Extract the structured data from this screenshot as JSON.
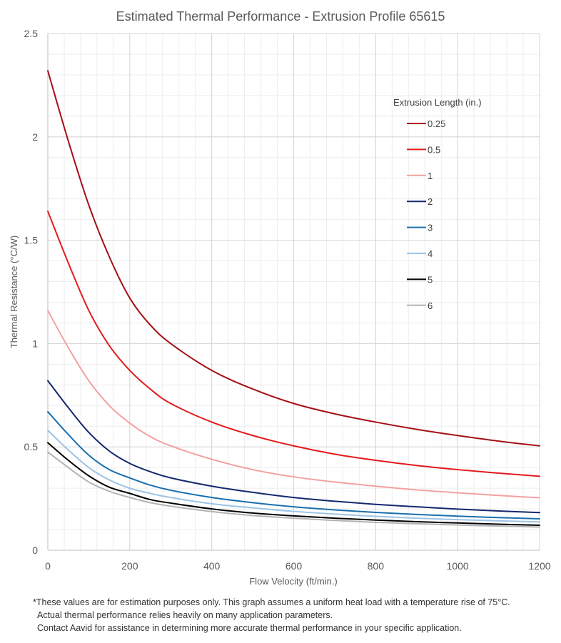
{
  "chart_data": {
    "type": "line",
    "title": "Estimated Thermal Performance - Extrusion Profile 65615",
    "xlabel": "Flow Velocity (ft/min.)",
    "ylabel": "Thermal Resistance (°C/W)",
    "xlim": [
      0,
      1200
    ],
    "ylim": [
      0,
      2.5
    ],
    "xticks": [
      0,
      200,
      400,
      600,
      800,
      1000,
      1200
    ],
    "yticks": [
      0,
      0.5,
      1,
      1.5,
      2,
      2.5
    ],
    "ytick_labels": [
      "0",
      "0.5",
      "1",
      "1.5",
      "2",
      "2.5"
    ],
    "xtick_labels": [
      "0",
      "200",
      "400",
      "600",
      "800",
      "1000",
      "1200"
    ],
    "grid": true,
    "legend_title": "Extrusion Length (in.)",
    "legend_position": "top-right",
    "x": [
      0,
      50,
      100,
      150,
      200,
      250,
      300,
      400,
      500,
      600,
      700,
      800,
      900,
      1000,
      1100,
      1200
    ],
    "series": [
      {
        "name": "0.25",
        "color": "#a50f15",
        "values": [
          2.32,
          1.98,
          1.67,
          1.42,
          1.22,
          1.09,
          1.0,
          0.87,
          0.78,
          0.71,
          0.66,
          0.62,
          0.585,
          0.555,
          0.528,
          0.505
        ]
      },
      {
        "name": "0.5",
        "color": "#e41a1c",
        "values": [
          1.64,
          1.39,
          1.16,
          0.99,
          0.87,
          0.78,
          0.71,
          0.62,
          0.555,
          0.505,
          0.465,
          0.435,
          0.41,
          0.39,
          0.373,
          0.358
        ]
      },
      {
        "name": "1",
        "color": "#f4a0a0",
        "values": [
          1.16,
          0.98,
          0.82,
          0.7,
          0.615,
          0.55,
          0.505,
          0.44,
          0.39,
          0.355,
          0.33,
          0.31,
          0.292,
          0.278,
          0.265,
          0.254
        ]
      },
      {
        "name": "2",
        "color": "#14286e",
        "values": [
          0.82,
          0.69,
          0.57,
          0.48,
          0.42,
          0.38,
          0.35,
          0.31,
          0.28,
          0.255,
          0.237,
          0.222,
          0.21,
          0.199,
          0.19,
          0.182
        ]
      },
      {
        "name": "3",
        "color": "#1a6faf",
        "values": [
          0.67,
          0.56,
          0.46,
          0.39,
          0.35,
          0.315,
          0.29,
          0.255,
          0.23,
          0.21,
          0.195,
          0.183,
          0.173,
          0.165,
          0.158,
          0.152
        ]
      },
      {
        "name": "4",
        "color": "#9dc3e6",
        "values": [
          0.58,
          0.485,
          0.4,
          0.34,
          0.3,
          0.275,
          0.255,
          0.225,
          0.205,
          0.188,
          0.175,
          0.164,
          0.155,
          0.148,
          0.142,
          0.137
        ]
      },
      {
        "name": "5",
        "color": "#000000",
        "values": [
          0.52,
          0.435,
          0.36,
          0.305,
          0.275,
          0.245,
          0.228,
          0.2,
          0.18,
          0.166,
          0.155,
          0.146,
          0.138,
          0.132,
          0.126,
          0.121
        ]
      },
      {
        "name": "6",
        "color": "#b3b3b3",
        "values": [
          0.475,
          0.4,
          0.33,
          0.285,
          0.255,
          0.23,
          0.213,
          0.187,
          0.168,
          0.155,
          0.144,
          0.135,
          0.128,
          0.122,
          0.117,
          0.112
        ]
      }
    ]
  },
  "footnote": {
    "line1": "*These values are for estimation purposes only. This graph assumes a uniform heat load with a temperature rise of 75°C.",
    "line2": "Actual thermal performance relies heavily on many application parameters.",
    "line3": "Contact Aavid for assistance in determining more accurate thermal performance in your specific application."
  }
}
